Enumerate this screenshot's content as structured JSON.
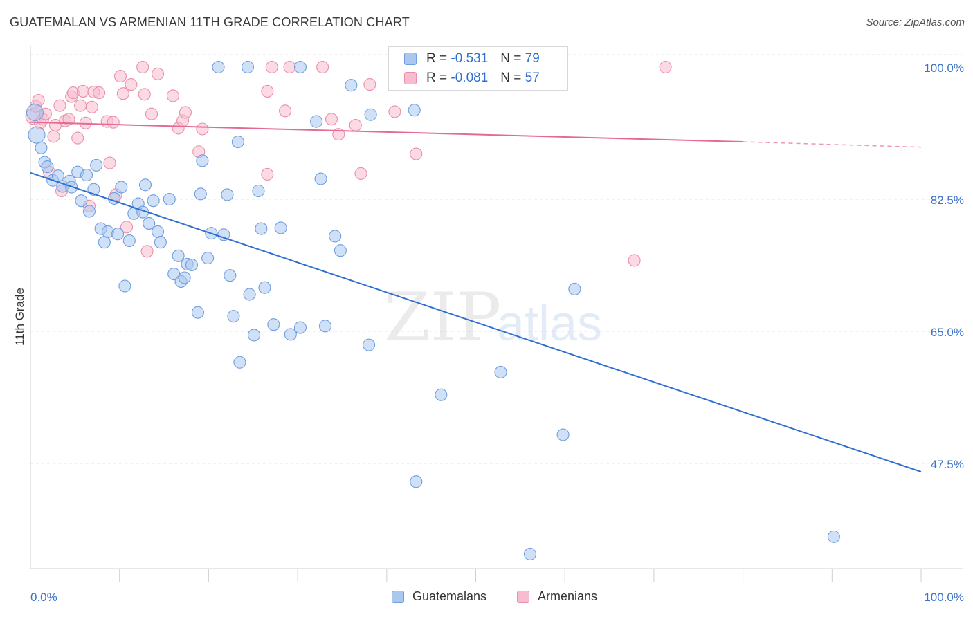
{
  "title": "GUATEMALAN VS ARMENIAN 11TH GRADE CORRELATION CHART",
  "source": "Source: ZipAtlas.com",
  "legend": {
    "rows": [
      {
        "r_label": "R =",
        "r_value": "-0.531",
        "n_label": "N =",
        "n_value": "79",
        "color": "#a9c7ef",
        "border": "#6e9fe0"
      },
      {
        "r_label": "R =",
        "r_value": "-0.081",
        "n_label": "N =",
        "n_value": "57",
        "color": "#f7bccd",
        "border": "#ea8fab"
      }
    ]
  },
  "bottom_legend": [
    {
      "label": "Guatemalans",
      "color": "#a9c7ef",
      "border": "#6e9fe0"
    },
    {
      "label": "Armenians",
      "color": "#f7bccd",
      "border": "#ea8fab"
    }
  ],
  "watermark": {
    "zip": "ZIP",
    "atlas": "atlas"
  },
  "chart_data": {
    "type": "scatter",
    "title": "GUATEMALAN VS ARMENIAN 11TH GRADE CORRELATION CHART",
    "xlabel": "",
    "ylabel": "11th Grade",
    "xlim": [
      0,
      100
    ],
    "ylim": [
      33.5,
      102
    ],
    "x_tick_labels": [
      "0.0%",
      "100.0%"
    ],
    "y_ticks": [
      47.5,
      65.0,
      82.5,
      100.0
    ],
    "y_tick_labels": [
      "47.5%",
      "65.0%",
      "82.5%",
      "100.0%"
    ],
    "grid": true,
    "legend_position": "top-center",
    "series": [
      {
        "name": "Guatemalans",
        "color": "#6e9fe0",
        "fill": "#a9c7ef",
        "trend_color": "#2f6fd0",
        "trend": {
          "x": [
            0,
            100
          ],
          "y": [
            86.0,
            46.4
          ]
        },
        "points": [
          [
            0.5,
            94
          ],
          [
            0.7,
            91
          ],
          [
            1.2,
            89.3
          ],
          [
            1.6,
            87.4
          ],
          [
            1.9,
            86.8
          ],
          [
            2.5,
            85
          ],
          [
            3.1,
            85.6
          ],
          [
            3.6,
            84.2
          ],
          [
            4.4,
            84.9
          ],
          [
            4.6,
            84.1
          ],
          [
            5.3,
            86.1
          ],
          [
            5.7,
            82.3
          ],
          [
            6.3,
            85.7
          ],
          [
            6.6,
            80.9
          ],
          [
            7.1,
            83.8
          ],
          [
            7.4,
            87
          ],
          [
            7.9,
            78.6
          ],
          [
            8.3,
            76.8
          ],
          [
            8.7,
            78.2
          ],
          [
            9.4,
            82.6
          ],
          [
            9.8,
            77.9
          ],
          [
            10.2,
            84.1
          ],
          [
            10.6,
            71
          ],
          [
            11.1,
            77
          ],
          [
            11.6,
            80.6
          ],
          [
            12.1,
            81.9
          ],
          [
            12.6,
            80.8
          ],
          [
            12.9,
            84.4
          ],
          [
            13.3,
            79.3
          ],
          [
            13.8,
            82.3
          ],
          [
            14.3,
            78.2
          ],
          [
            14.6,
            76.8
          ],
          [
            15.6,
            82.5
          ],
          [
            16.1,
            72.6
          ],
          [
            16.6,
            75
          ],
          [
            16.9,
            71.6
          ],
          [
            17.3,
            72.1
          ],
          [
            17.6,
            73.9
          ],
          [
            18.1,
            73.8
          ],
          [
            18.8,
            67.5
          ],
          [
            19.1,
            83.2
          ],
          [
            19.3,
            87.6
          ],
          [
            19.9,
            74.7
          ],
          [
            20.3,
            78
          ],
          [
            21.7,
            77.8
          ],
          [
            22.1,
            83.1
          ],
          [
            22.4,
            72.4
          ],
          [
            22.8,
            67
          ],
          [
            23.3,
            90.1
          ],
          [
            23.5,
            60.9
          ],
          [
            24.6,
            69.9
          ],
          [
            25.1,
            64.5
          ],
          [
            25.6,
            83.6
          ],
          [
            25.9,
            78.6
          ],
          [
            26.3,
            70.8
          ],
          [
            27.3,
            65.9
          ],
          [
            28.1,
            78.7
          ],
          [
            29.2,
            64.6
          ],
          [
            30.3,
            65.5
          ],
          [
            32.1,
            92.8
          ],
          [
            32.6,
            85.2
          ],
          [
            33.1,
            65.7
          ],
          [
            34.2,
            77.6
          ],
          [
            34.8,
            75.7
          ],
          [
            36,
            97.6
          ],
          [
            38,
            63.2
          ],
          [
            38.2,
            93.7
          ],
          [
            43.1,
            94.3
          ],
          [
            43.3,
            45.1
          ],
          [
            46.1,
            56.6
          ],
          [
            52.8,
            59.6
          ],
          [
            58.3,
            100
          ],
          [
            59.8,
            51.3
          ],
          [
            61.1,
            70.6
          ],
          [
            90.2,
            37.8
          ],
          [
            56.1,
            35.5
          ],
          [
            21.1,
            100
          ],
          [
            24.4,
            100
          ],
          [
            30.3,
            100
          ]
        ]
      },
      {
        "name": "Armenians",
        "color": "#ea8fab",
        "fill": "#f7bccd",
        "trend_color": "#e56a92",
        "trend": {
          "x": [
            0,
            80
          ],
          "y": [
            92.7,
            90.1
          ]
        },
        "trend_dashed": {
          "x": [
            80,
            100
          ],
          "y": [
            90.1,
            89.4
          ]
        },
        "points": [
          [
            0.4,
            93.5
          ],
          [
            0.6,
            94.8
          ],
          [
            0.9,
            95.6
          ],
          [
            1.1,
            92.6
          ],
          [
            1.4,
            93.1
          ],
          [
            1.7,
            93.8
          ],
          [
            2.1,
            86.1
          ],
          [
            2.6,
            90.8
          ],
          [
            2.8,
            92.3
          ],
          [
            3.3,
            94.9
          ],
          [
            3.5,
            83.6
          ],
          [
            3.9,
            92.9
          ],
          [
            4.3,
            93.1
          ],
          [
            4.6,
            96.1
          ],
          [
            4.8,
            96.6
          ],
          [
            5.3,
            90.6
          ],
          [
            5.6,
            94.9
          ],
          [
            5.9,
            96.8
          ],
          [
            6.2,
            92.6
          ],
          [
            6.6,
            81.6
          ],
          [
            6.9,
            94.7
          ],
          [
            7.1,
            96.7
          ],
          [
            7.7,
            96.6
          ],
          [
            8.6,
            92.8
          ],
          [
            8.9,
            87.3
          ],
          [
            9.3,
            92.7
          ],
          [
            9.6,
            83.1
          ],
          [
            10.1,
            98.8
          ],
          [
            10.4,
            96.5
          ],
          [
            10.8,
            78.8
          ],
          [
            11.3,
            97.7
          ],
          [
            12.6,
            100
          ],
          [
            12.8,
            96.4
          ],
          [
            13.1,
            75.6
          ],
          [
            13.6,
            93.8
          ],
          [
            14.3,
            99.1
          ],
          [
            16,
            96.2
          ],
          [
            16.6,
            91.9
          ],
          [
            17.1,
            92.9
          ],
          [
            17.4,
            94
          ],
          [
            18.9,
            88.8
          ],
          [
            19.3,
            91.8
          ],
          [
            26.6,
            96.8
          ],
          [
            26.6,
            85.8
          ],
          [
            27.1,
            100
          ],
          [
            28.6,
            94.2
          ],
          [
            29.1,
            100
          ],
          [
            32.8,
            100
          ],
          [
            33.8,
            93.1
          ],
          [
            34.6,
            91.1
          ],
          [
            36.5,
            92.3
          ],
          [
            37.1,
            85.9
          ],
          [
            38.1,
            97.7
          ],
          [
            40.9,
            94.1
          ],
          [
            43.3,
            88.5
          ],
          [
            67.8,
            74.4
          ],
          [
            71.3,
            100
          ]
        ]
      }
    ]
  }
}
